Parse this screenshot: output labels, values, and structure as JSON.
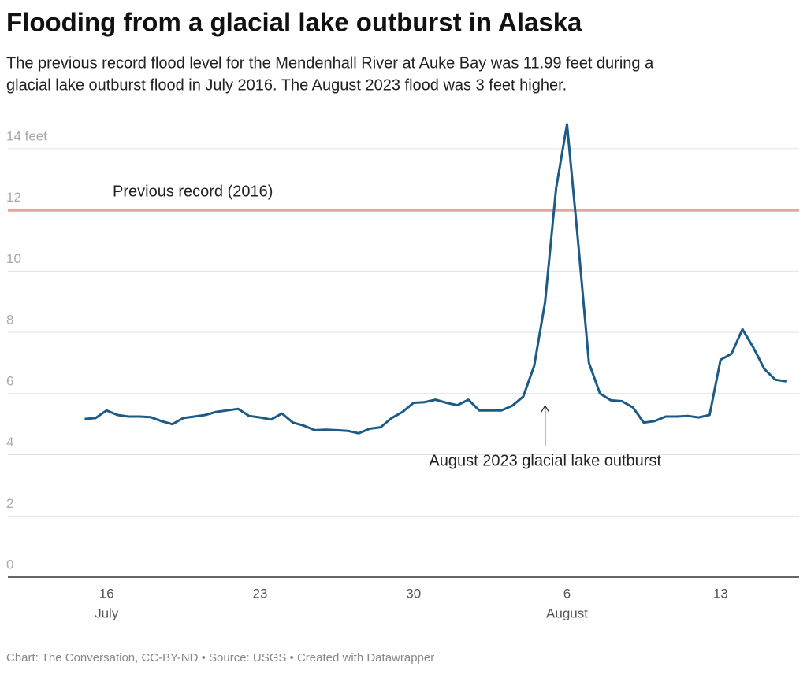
{
  "chart_data": {
    "type": "line",
    "title": "Flooding from a glacial lake outburst in Alaska",
    "subtitle": [
      "The previous record flood level for the Mendenhall River at Auke Bay was 11.99 feet during a",
      "glacial lake outburst flood in July 2016. The August 2023 flood was 3 feet higher."
    ],
    "footer": "Chart: The Conversation, CC-BY-ND • Source: USGS • Created with Datawrapper",
    "color": "#1c5b87",
    "x": [
      "07-15 00:00",
      "07-15 12:00",
      "07-16 00:00",
      "07-16 12:00",
      "07-17 00:00",
      "07-17 12:00",
      "07-18 00:00",
      "07-18 12:00",
      "07-19 00:00",
      "07-19 12:00",
      "07-20 00:00",
      "07-20 12:00",
      "07-21 00:00",
      "07-21 12:00",
      "07-22 00:00",
      "07-22 12:00",
      "07-23 00:00",
      "07-23 12:00",
      "07-24 00:00",
      "07-24 12:00",
      "07-25 00:00",
      "07-25 12:00",
      "07-26 00:00",
      "07-26 12:00",
      "07-27 00:00",
      "07-27 12:00",
      "07-28 00:00",
      "07-28 12:00",
      "07-29 00:00",
      "07-29 12:00",
      "07-30 00:00",
      "07-30 12:00",
      "07-31 00:00",
      "07-31 12:00",
      "08-01 00:00",
      "08-01 12:00",
      "08-02 00:00",
      "08-02 12:00",
      "08-03 00:00",
      "08-03 12:00",
      "08-04 00:00",
      "08-04 12:00",
      "08-05 00:00",
      "08-05 12:00",
      "08-06 00:00",
      "08-06 12:00",
      "08-07 00:00",
      "08-07 12:00",
      "08-08 00:00",
      "08-08 12:00",
      "08-09 00:00",
      "08-09 12:00",
      "08-10 00:00",
      "08-10 12:00",
      "08-11 00:00",
      "08-11 12:00",
      "08-12 00:00",
      "08-12 12:00",
      "08-13 00:00",
      "08-13 12:00",
      "08-14 00:00",
      "08-14 12:00",
      "08-15 00:00",
      "08-15 12:00",
      "08-16 00:00"
    ],
    "values": [
      5.17,
      5.2,
      5.45,
      5.3,
      5.25,
      5.25,
      5.23,
      5.1,
      5.0,
      5.2,
      5.25,
      5.3,
      5.4,
      5.45,
      5.5,
      5.27,
      5.22,
      5.15,
      5.35,
      5.05,
      4.95,
      4.8,
      4.82,
      4.8,
      4.78,
      4.7,
      4.85,
      4.9,
      5.2,
      5.4,
      5.7,
      5.72,
      5.8,
      5.7,
      5.62,
      5.8,
      5.45,
      5.45,
      5.45,
      5.6,
      5.9,
      6.9,
      9.0,
      12.7,
      14.8,
      11.0,
      7.0,
      6.0,
      5.78,
      5.75,
      5.55,
      5.05,
      5.1,
      5.25,
      5.25,
      5.27,
      5.22,
      5.3,
      7.1,
      7.3,
      8.1,
      7.5,
      6.8,
      6.45,
      6.4
    ],
    "xlim": [
      "07-11 12:00",
      "08-16 14:00"
    ],
    "xticks": [
      {
        "value": "07-16 00:00",
        "label": "16"
      },
      {
        "value": "07-23 00:00",
        "label": "23"
      },
      {
        "value": "07-30 00:00",
        "label": "30"
      },
      {
        "value": "08-06 00:00",
        "label": "6"
      },
      {
        "value": "08-13 00:00",
        "label": "13"
      }
    ],
    "x_month_labels": [
      {
        "value": "07-16 00:00",
        "label": "July"
      },
      {
        "value": "08-06 00:00",
        "label": "August"
      }
    ],
    "ylim": [
      0,
      15
    ],
    "yticks": [
      0,
      2,
      4,
      6,
      8,
      10,
      12,
      {
        "value": 14,
        "label": "14 feet"
      }
    ],
    "grid": true,
    "reference_lines": [
      {
        "value": 11.99,
        "label": "Previous record (2016)",
        "color": "#e8a3a3"
      }
    ],
    "annotations": [
      {
        "text": "August 2023 glacial lake outburst",
        "x": "08-05 00:00",
        "y": 5.6
      }
    ]
  }
}
